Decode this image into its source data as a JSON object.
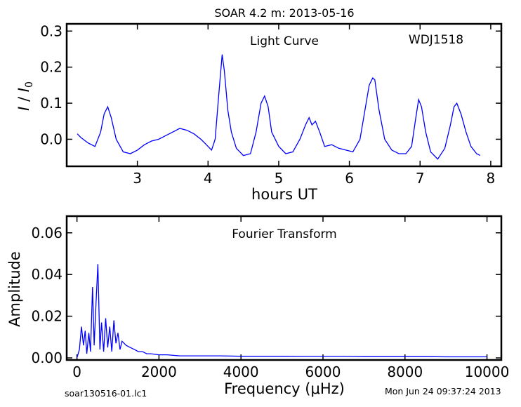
{
  "figure": {
    "title": "SOAR 4.2 m:  2013-05-16",
    "footer_left": "soar130516-01.lc1",
    "footer_right": "Mon Jun 24 09:37:24 2013",
    "line_color": "#0000ff"
  },
  "chart_data": [
    {
      "type": "line",
      "title": "Light Curve",
      "annotation": "WDJ1518",
      "xlabel": "hours UT",
      "ylabel_main": "I",
      "ylabel_sub": "0",
      "xlim": [
        2.0,
        8.15
      ],
      "ylim": [
        -0.075,
        0.32
      ],
      "xticks": [
        3,
        4,
        5,
        6,
        7,
        8
      ],
      "xtick_labels": [
        "3",
        "4",
        "5",
        "6",
        "7",
        "8"
      ],
      "yticks": [
        0.0,
        0.1,
        0.2,
        0.3
      ],
      "ytick_labels": [
        "0.0",
        "0.1",
        "0.2",
        "0.3"
      ],
      "series": [
        {
          "x": [
            2.15,
            2.2,
            2.3,
            2.4,
            2.48,
            2.53,
            2.58,
            2.63,
            2.7,
            2.8,
            2.9,
            3.0,
            3.1,
            3.2,
            3.3,
            3.4,
            3.5,
            3.6,
            3.7,
            3.8,
            3.9,
            3.95,
            4.0,
            4.05,
            4.1,
            4.15,
            4.2,
            4.23,
            4.28,
            4.33,
            4.4,
            4.5,
            4.6,
            4.68,
            4.75,
            4.8,
            4.85,
            4.9,
            5.0,
            5.1,
            5.2,
            5.3,
            5.38,
            5.43,
            5.47,
            5.52,
            5.58,
            5.65,
            5.75,
            5.85,
            5.95,
            6.05,
            6.15,
            6.22,
            6.28,
            6.33,
            6.36,
            6.42,
            6.5,
            6.6,
            6.7,
            6.8,
            6.88,
            6.94,
            6.98,
            7.02,
            7.08,
            7.15,
            7.25,
            7.35,
            7.43,
            7.48,
            7.52,
            7.58,
            7.65,
            7.72,
            7.8,
            7.85
          ],
          "y": [
            0.015,
            0.005,
            -0.01,
            -0.02,
            0.02,
            0.07,
            0.09,
            0.06,
            0.0,
            -0.035,
            -0.04,
            -0.03,
            -0.015,
            -0.005,
            0.0,
            0.01,
            0.02,
            0.03,
            0.025,
            0.015,
            0.0,
            -0.01,
            -0.02,
            -0.03,
            0.0,
            0.12,
            0.235,
            0.19,
            0.08,
            0.02,
            -0.025,
            -0.045,
            -0.04,
            0.02,
            0.1,
            0.12,
            0.09,
            0.02,
            -0.02,
            -0.04,
            -0.035,
            0.0,
            0.04,
            0.06,
            0.04,
            0.05,
            0.02,
            -0.02,
            -0.015,
            -0.025,
            -0.03,
            -0.035,
            0.0,
            0.08,
            0.15,
            0.17,
            0.165,
            0.08,
            0.0,
            -0.03,
            -0.04,
            -0.04,
            -0.02,
            0.06,
            0.11,
            0.09,
            0.02,
            -0.035,
            -0.055,
            -0.025,
            0.04,
            0.09,
            0.1,
            0.07,
            0.02,
            -0.02,
            -0.04,
            -0.045
          ]
        }
      ]
    },
    {
      "type": "line",
      "title": "Fourier Transform",
      "xlabel": "Frequency (μHz)",
      "ylabel": "Amplitude",
      "xlim": [
        -250,
        10350
      ],
      "ylim": [
        -0.001,
        0.068
      ],
      "xticks": [
        0,
        2000,
        4000,
        6000,
        8000,
        10000
      ],
      "xtick_labels": [
        "0",
        "2000",
        "4000",
        "6000",
        "8000",
        "10000"
      ],
      "yticks": [
        0.0,
        0.02,
        0.04,
        0.06
      ],
      "ytick_labels": [
        "0.00",
        "0.02",
        "0.04",
        "0.06"
      ],
      "series": [
        {
          "x": [
            0,
            60,
            110,
            160,
            200,
            240,
            290,
            330,
            380,
            420,
            470,
            510,
            560,
            600,
            650,
            700,
            750,
            800,
            850,
            900,
            950,
            1000,
            1050,
            1100,
            1200,
            1300,
            1400,
            1500,
            1600,
            1700,
            1800,
            2000,
            2200,
            2500,
            3000,
            3500,
            4000,
            4500,
            5000,
            5500,
            6000,
            6500,
            7000,
            7500,
            8000,
            8500,
            9000,
            9500,
            10000
          ],
          "y": [
            0.0,
            0.004,
            0.015,
            0.006,
            0.013,
            0.002,
            0.012,
            0.003,
            0.034,
            0.006,
            0.028,
            0.045,
            0.004,
            0.017,
            0.003,
            0.019,
            0.005,
            0.015,
            0.003,
            0.018,
            0.007,
            0.012,
            0.004,
            0.008,
            0.006,
            0.005,
            0.004,
            0.003,
            0.003,
            0.002,
            0.002,
            0.0015,
            0.0015,
            0.001,
            0.001,
            0.001,
            0.0008,
            0.0008,
            0.0008,
            0.0007,
            0.0007,
            0.0007,
            0.0006,
            0.0006,
            0.0006,
            0.0006,
            0.0005,
            0.0005,
            0.0005
          ]
        }
      ]
    }
  ]
}
